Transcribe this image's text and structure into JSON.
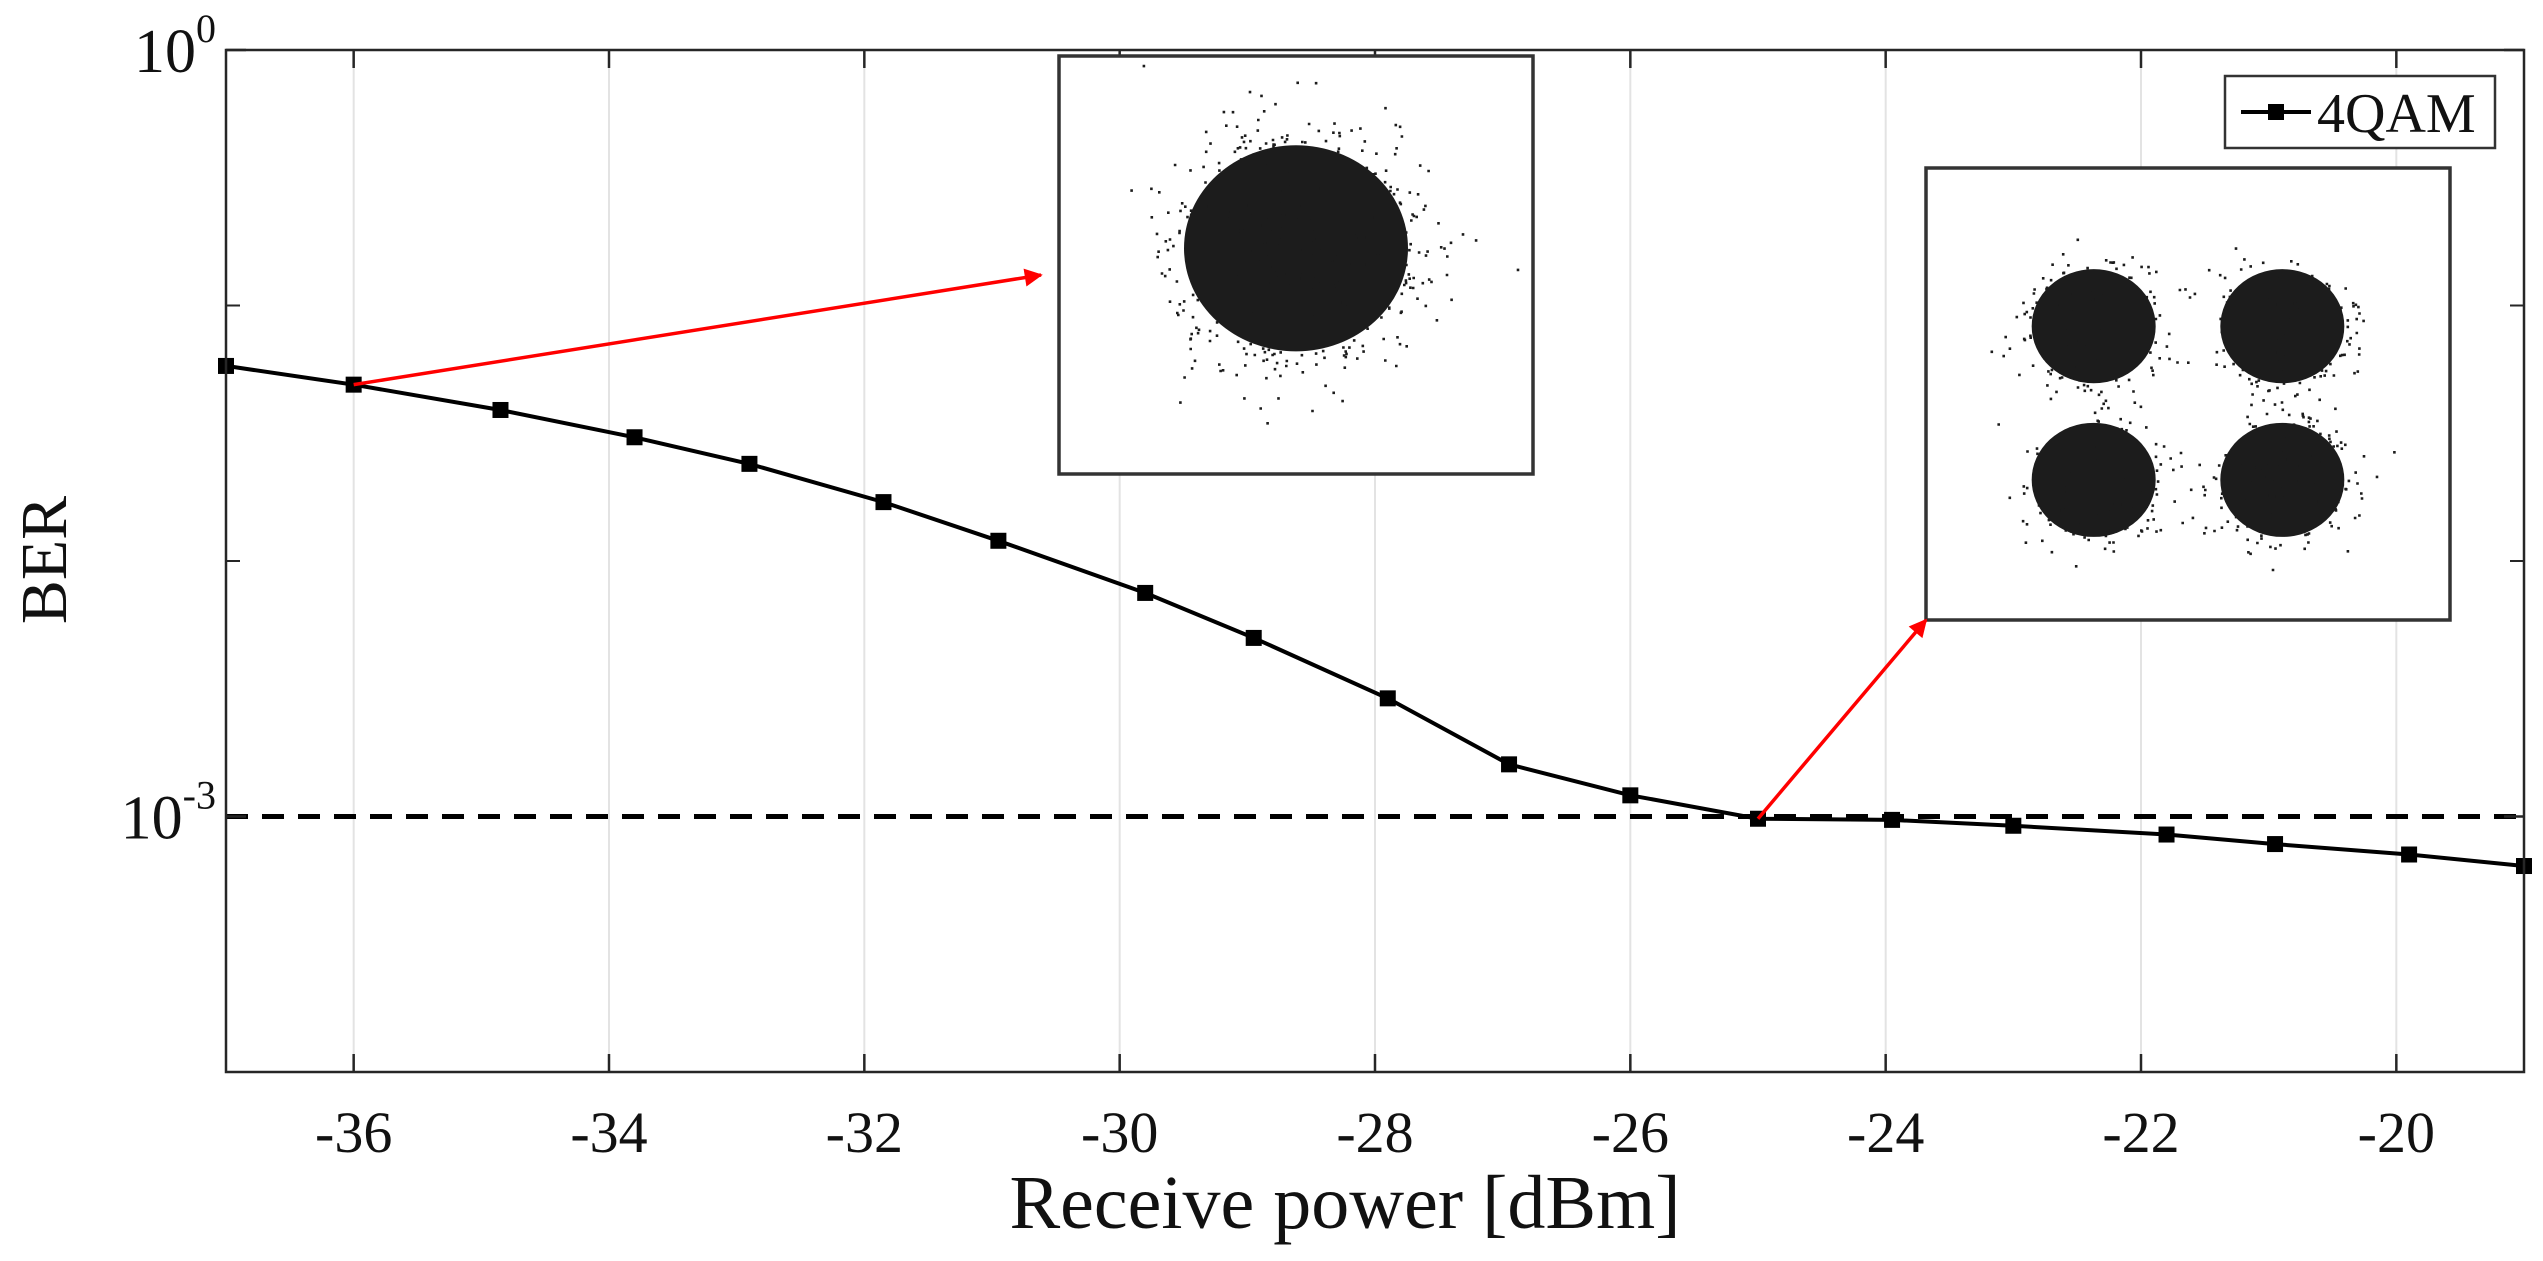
{
  "chart_data": {
    "type": "line",
    "xlabel": "Receive power [dBm]",
    "ylabel": "BER",
    "x_scale": "linear",
    "y_scale": "log",
    "xlim": [
      -37,
      -19
    ],
    "ylim": [
      0.0001,
      1
    ],
    "x_ticks": [
      -36,
      -34,
      -32,
      -30,
      -28,
      -26,
      -24,
      -22,
      -20
    ],
    "x_tick_labels": [
      "-36",
      "-34",
      "-32",
      "-30",
      "-28",
      "-26",
      "-24",
      "-22",
      "-20"
    ],
    "y_tick_labels": [
      {
        "value": 1,
        "base": "10",
        "exp": "0"
      },
      {
        "value": 0.001,
        "base": "10",
        "exp": "-3"
      }
    ],
    "y_minor_ticks": [
      0.1,
      0.01
    ],
    "grid": "vertical",
    "legend": {
      "position": "top-right",
      "entries": [
        "4QAM"
      ]
    },
    "series": [
      {
        "name": "4QAM",
        "color": "#000000",
        "marker": "square",
        "x": [
          -37,
          -36,
          -34.85,
          -33.8,
          -32.9,
          -31.85,
          -30.95,
          -29.8,
          -28.95,
          -27.9,
          -26.95,
          -26,
          -25,
          -23.95,
          -23,
          -21.8,
          -20.95,
          -19.9,
          -19
        ],
        "y": [
          0.058,
          0.049,
          0.039,
          0.0305,
          0.024,
          0.017,
          0.012,
          0.0075,
          0.005,
          0.0029,
          0.0016,
          0.00121,
          0.00098,
          0.00097,
          0.00092,
          0.00085,
          0.00078,
          0.00071,
          0.00064
        ]
      }
    ],
    "threshold": {
      "y": 0.001,
      "style": "dashed",
      "color": "#000000"
    },
    "annotations": [
      {
        "type": "arrow",
        "color": "#ff0000",
        "from": {
          "x": -36,
          "y": 0.049
        },
        "to_inset": "cloud"
      },
      {
        "type": "arrow",
        "color": "#ff0000",
        "from": {
          "x": -25,
          "y": 0.00098
        },
        "to_inset": "qam"
      }
    ],
    "insets": [
      {
        "id": "cloud",
        "content": "constellation",
        "clusters": 1
      },
      {
        "id": "qam",
        "content": "constellation",
        "clusters": 4
      }
    ]
  }
}
